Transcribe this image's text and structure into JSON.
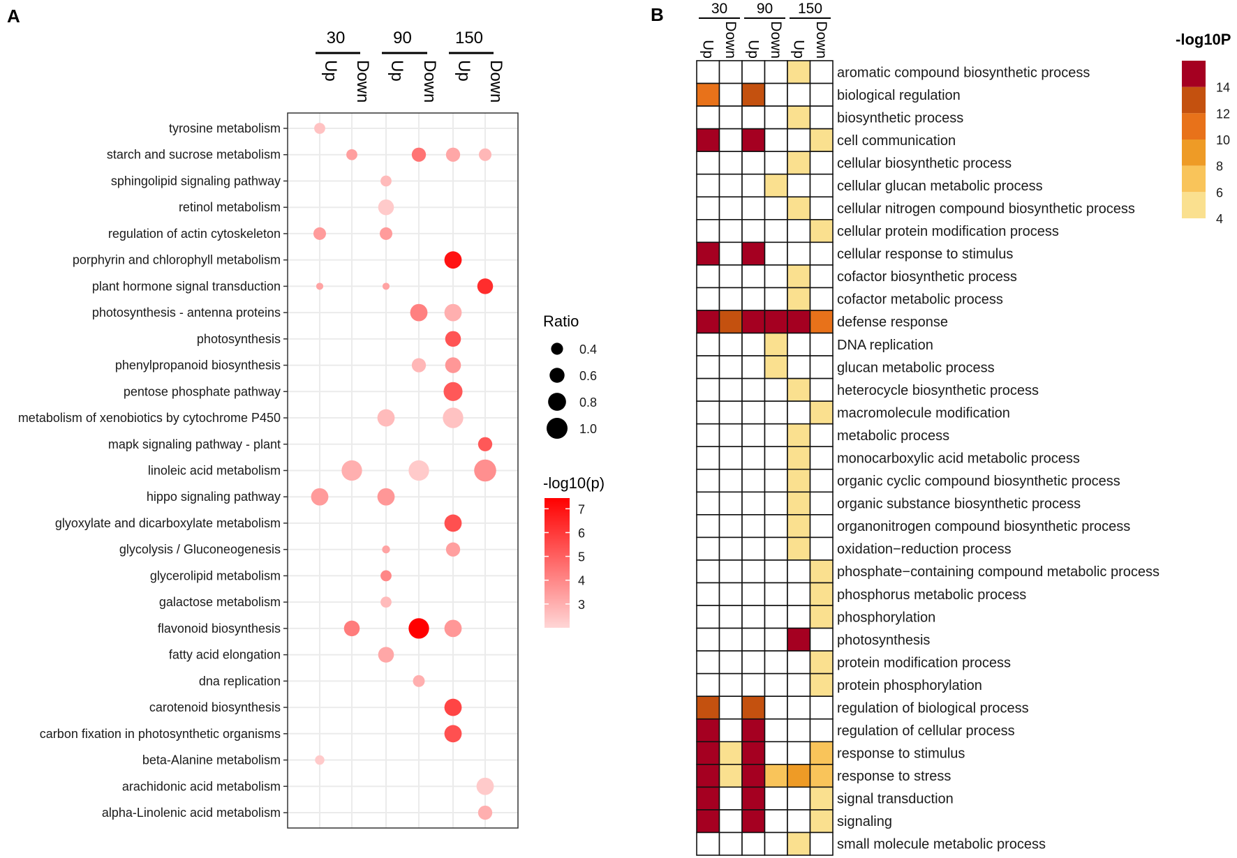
{
  "panels": {
    "a": "A",
    "b": "B"
  },
  "chart_data": [
    {
      "type": "scatter",
      "title": "",
      "groups": [
        {
          "label": "30",
          "columns": [
            "Up",
            "Down"
          ]
        },
        {
          "label": "90",
          "columns": [
            "Up",
            "Down"
          ]
        },
        {
          "label": "150",
          "columns": [
            "Up",
            "Down"
          ]
        }
      ],
      "columns": [
        "30 Up",
        "30 Down",
        "90 Up",
        "90 Down",
        "150 Up",
        "150 Down"
      ],
      "grid": true,
      "size_legend": {
        "title": "Ratio",
        "values": [
          0.4,
          0.6,
          0.8,
          1.0
        ],
        "labels": [
          "0.4",
          "0.6",
          "0.8",
          "1.0"
        ]
      },
      "color_legend": {
        "title": "-log10(p)",
        "range": [
          2.0,
          7.45
        ],
        "ticks": [
          7,
          6,
          5,
          4,
          3
        ],
        "tick_labels": [
          "7",
          "6",
          "5",
          "4",
          "3"
        ],
        "low_color": "#FFD6D6",
        "high_color": "#FF0000"
      },
      "legend_position": "right",
      "rows": [
        {
          "term": "tyrosine metabolism",
          "points": [
            {
              "col": 0,
              "ratio": 0.3,
              "logp": 2.5
            }
          ]
        },
        {
          "term": "starch and sucrose metabolism",
          "points": [
            {
              "col": 1,
              "ratio": 0.3,
              "logp": 3.4
            },
            {
              "col": 3,
              "ratio": 0.5,
              "logp": 4.5
            },
            {
              "col": 4,
              "ratio": 0.5,
              "logp": 3.2
            },
            {
              "col": 5,
              "ratio": 0.4,
              "logp": 2.8
            }
          ]
        },
        {
          "term": "sphingolipid signaling pathway",
          "points": [
            {
              "col": 2,
              "ratio": 0.3,
              "logp": 2.7
            }
          ]
        },
        {
          "term": "retinol metabolism",
          "points": [
            {
              "col": 2,
              "ratio": 0.6,
              "logp": 2.3
            }
          ]
        },
        {
          "term": "regulation of actin cytoskeleton",
          "points": [
            {
              "col": 0,
              "ratio": 0.4,
              "logp": 3.5
            },
            {
              "col": 2,
              "ratio": 0.4,
              "logp": 3.5
            }
          ]
        },
        {
          "term": "porphyrin and chlorophyll metabolism",
          "points": [
            {
              "col": 4,
              "ratio": 0.7,
              "logp": 7.0
            }
          ]
        },
        {
          "term": "plant hormone signal transduction",
          "points": [
            {
              "col": 0,
              "ratio": 0.05,
              "logp": 3.3
            },
            {
              "col": 2,
              "ratio": 0.05,
              "logp": 3.3
            },
            {
              "col": 5,
              "ratio": 0.6,
              "logp": 6.3
            }
          ]
        },
        {
          "term": "photosynthesis - antenna proteins",
          "points": [
            {
              "col": 3,
              "ratio": 0.7,
              "logp": 4.2
            },
            {
              "col": 4,
              "ratio": 0.7,
              "logp": 3.0
            }
          ]
        },
        {
          "term": "photosynthesis",
          "points": [
            {
              "col": 4,
              "ratio": 0.6,
              "logp": 5.3
            }
          ]
        },
        {
          "term": "phenylpropanoid biosynthesis",
          "points": [
            {
              "col": 3,
              "ratio": 0.5,
              "logp": 2.8
            },
            {
              "col": 4,
              "ratio": 0.6,
              "logp": 3.6
            }
          ]
        },
        {
          "term": "pentose phosphate pathway",
          "points": [
            {
              "col": 4,
              "ratio": 0.8,
              "logp": 5.2
            }
          ]
        },
        {
          "term": "metabolism of xenobiotics by cytochrome P450",
          "points": [
            {
              "col": 2,
              "ratio": 0.7,
              "logp": 2.7
            },
            {
              "col": 4,
              "ratio": 0.9,
              "logp": 2.5
            }
          ]
        },
        {
          "term": "mapk signaling pathway - plant",
          "points": [
            {
              "col": 5,
              "ratio": 0.5,
              "logp": 5.2
            }
          ]
        },
        {
          "term": "linoleic acid metabolism",
          "points": [
            {
              "col": 1,
              "ratio": 0.9,
              "logp": 3.0
            },
            {
              "col": 3,
              "ratio": 0.9,
              "logp": 2.3
            },
            {
              "col": 5,
              "ratio": 1.05,
              "logp": 3.8
            }
          ]
        },
        {
          "term": "hippo signaling pathway",
          "points": [
            {
              "col": 0,
              "ratio": 0.7,
              "logp": 3.5
            },
            {
              "col": 2,
              "ratio": 0.7,
              "logp": 3.6
            }
          ]
        },
        {
          "term": "glyoxylate and dicarboxylate metabolism",
          "points": [
            {
              "col": 4,
              "ratio": 0.7,
              "logp": 5.4
            }
          ]
        },
        {
          "term": "glycolysis / Gluconeogenesis",
          "points": [
            {
              "col": 2,
              "ratio": 0.1,
              "logp": 3.3
            },
            {
              "col": 4,
              "ratio": 0.5,
              "logp": 3.4
            }
          ]
        },
        {
          "term": "glycerolipid metabolism",
          "points": [
            {
              "col": 2,
              "ratio": 0.3,
              "logp": 4.0
            }
          ]
        },
        {
          "term": "galactose metabolism",
          "points": [
            {
              "col": 2,
              "ratio": 0.3,
              "logp": 2.7
            }
          ]
        },
        {
          "term": "flavonoid biosynthesis",
          "points": [
            {
              "col": 1,
              "ratio": 0.6,
              "logp": 4.3
            },
            {
              "col": 3,
              "ratio": 0.9,
              "logp": 7.5
            },
            {
              "col": 4,
              "ratio": 0.7,
              "logp": 3.6
            }
          ]
        },
        {
          "term": "fatty acid elongation",
          "points": [
            {
              "col": 2,
              "ratio": 0.6,
              "logp": 3.2
            }
          ]
        },
        {
          "term": "dna replication",
          "points": [
            {
              "col": 3,
              "ratio": 0.35,
              "logp": 3.0
            }
          ]
        },
        {
          "term": "carotenoid biosynthesis",
          "points": [
            {
              "col": 4,
              "ratio": 0.7,
              "logp": 5.7
            }
          ]
        },
        {
          "term": "carbon fixation in photosynthetic organisms",
          "points": [
            {
              "col": 4,
              "ratio": 0.7,
              "logp": 5.4
            }
          ]
        },
        {
          "term": "beta-Alanine metabolism",
          "points": [
            {
              "col": 0,
              "ratio": 0.2,
              "logp": 2.3
            }
          ]
        },
        {
          "term": "arachidonic acid metabolism",
          "points": [
            {
              "col": 5,
              "ratio": 0.7,
              "logp": 2.3
            }
          ]
        },
        {
          "term": "alpha-Linolenic acid metabolism",
          "points": [
            {
              "col": 5,
              "ratio": 0.5,
              "logp": 3.0
            }
          ]
        }
      ]
    },
    {
      "type": "heatmap",
      "title": "",
      "groups": [
        {
          "label": "30",
          "columns": [
            "Up",
            "Down"
          ]
        },
        {
          "label": "90",
          "columns": [
            "Up",
            "Down"
          ]
        },
        {
          "label": "150",
          "columns": [
            "Up",
            "Down"
          ]
        }
      ],
      "columns": [
        "30 Up",
        "30 Down",
        "90 Up",
        "90 Down",
        "150 Up",
        "150 Down"
      ],
      "legend": {
        "title": "-log10P",
        "bins": [
          {
            "min": 14,
            "max": 16,
            "color": "#A50021"
          },
          {
            "min": 12,
            "max": 14,
            "color": "#C4510F"
          },
          {
            "min": 10,
            "max": 12,
            "color": "#E8721A"
          },
          {
            "min": 8,
            "max": 10,
            "color": "#EE9B26"
          },
          {
            "min": 6,
            "max": 8,
            "color": "#F9C45A"
          },
          {
            "min": 4,
            "max": 6,
            "color": "#FAE08F"
          }
        ],
        "tick_labels": [
          "14",
          "12",
          "10",
          "8",
          "6",
          "4"
        ],
        "ticks": [
          14,
          12,
          10,
          8,
          6,
          4
        ]
      },
      "rows": [
        {
          "term": "aromatic compound biosynthetic process",
          "values": [
            null,
            null,
            null,
            null,
            5,
            null
          ]
        },
        {
          "term": "biological regulation",
          "values": [
            11,
            null,
            13,
            null,
            null,
            null
          ]
        },
        {
          "term": "biosynthetic process",
          "values": [
            null,
            null,
            null,
            null,
            5,
            null
          ]
        },
        {
          "term": "cell communication",
          "values": [
            15,
            null,
            15,
            null,
            null,
            5
          ]
        },
        {
          "term": "cellular biosynthetic process",
          "values": [
            null,
            null,
            null,
            null,
            5,
            null
          ]
        },
        {
          "term": "cellular glucan metabolic process",
          "values": [
            null,
            null,
            null,
            5,
            null,
            null
          ]
        },
        {
          "term": "cellular nitrogen compound biosynthetic process",
          "values": [
            null,
            null,
            null,
            null,
            5,
            null
          ]
        },
        {
          "term": "cellular protein modification process",
          "values": [
            null,
            null,
            null,
            null,
            null,
            5
          ]
        },
        {
          "term": "cellular response to stimulus",
          "values": [
            15,
            null,
            15,
            null,
            null,
            null
          ]
        },
        {
          "term": "cofactor biosynthetic process",
          "values": [
            null,
            null,
            null,
            null,
            5,
            null
          ]
        },
        {
          "term": "cofactor metabolic process",
          "values": [
            null,
            null,
            null,
            null,
            5,
            null
          ]
        },
        {
          "term": "defense response",
          "values": [
            15,
            13,
            15,
            15,
            15,
            11
          ]
        },
        {
          "term": "DNA replication",
          "values": [
            null,
            null,
            null,
            5,
            null,
            null
          ]
        },
        {
          "term": "glucan metabolic process",
          "values": [
            null,
            null,
            null,
            5,
            null,
            null
          ]
        },
        {
          "term": "heterocycle biosynthetic process",
          "values": [
            null,
            null,
            null,
            null,
            5,
            null
          ]
        },
        {
          "term": "macromolecule modification",
          "values": [
            null,
            null,
            null,
            null,
            null,
            5
          ]
        },
        {
          "term": "metabolic process",
          "values": [
            null,
            null,
            null,
            null,
            5,
            null
          ]
        },
        {
          "term": "monocarboxylic acid metabolic process",
          "values": [
            null,
            null,
            null,
            null,
            5,
            null
          ]
        },
        {
          "term": "organic cyclic compound biosynthetic process",
          "values": [
            null,
            null,
            null,
            null,
            5,
            null
          ]
        },
        {
          "term": "organic substance biosynthetic process",
          "values": [
            null,
            null,
            null,
            null,
            5,
            null
          ]
        },
        {
          "term": "organonitrogen compound biosynthetic process",
          "values": [
            null,
            null,
            null,
            null,
            5,
            null
          ]
        },
        {
          "term": "oxidation−reduction process",
          "values": [
            null,
            null,
            null,
            null,
            5,
            null
          ]
        },
        {
          "term": "phosphate−containing compound metabolic process",
          "values": [
            null,
            null,
            null,
            null,
            null,
            5
          ]
        },
        {
          "term": "phosphorus metabolic process",
          "values": [
            null,
            null,
            null,
            null,
            null,
            5
          ]
        },
        {
          "term": "phosphorylation",
          "values": [
            null,
            null,
            null,
            null,
            null,
            5
          ]
        },
        {
          "term": "photosynthesis",
          "values": [
            null,
            null,
            null,
            null,
            15,
            null
          ]
        },
        {
          "term": "protein modification process",
          "values": [
            null,
            null,
            null,
            null,
            null,
            5
          ]
        },
        {
          "term": "protein phosphorylation",
          "values": [
            null,
            null,
            null,
            null,
            null,
            5
          ]
        },
        {
          "term": "regulation of biological process",
          "values": [
            13,
            null,
            13,
            null,
            null,
            null
          ]
        },
        {
          "term": "regulation of cellular process",
          "values": [
            15,
            null,
            15,
            null,
            null,
            null
          ]
        },
        {
          "term": "response to stimulus",
          "values": [
            15,
            5,
            15,
            null,
            null,
            7
          ]
        },
        {
          "term": "response to stress",
          "values": [
            15,
            5,
            15,
            7,
            9,
            7
          ]
        },
        {
          "term": "signal transduction",
          "values": [
            15,
            null,
            15,
            null,
            null,
            5
          ]
        },
        {
          "term": "signaling",
          "values": [
            15,
            null,
            15,
            null,
            null,
            5
          ]
        },
        {
          "term": "small molecule metabolic process",
          "values": [
            null,
            null,
            null,
            null,
            5,
            null
          ]
        }
      ]
    }
  ]
}
